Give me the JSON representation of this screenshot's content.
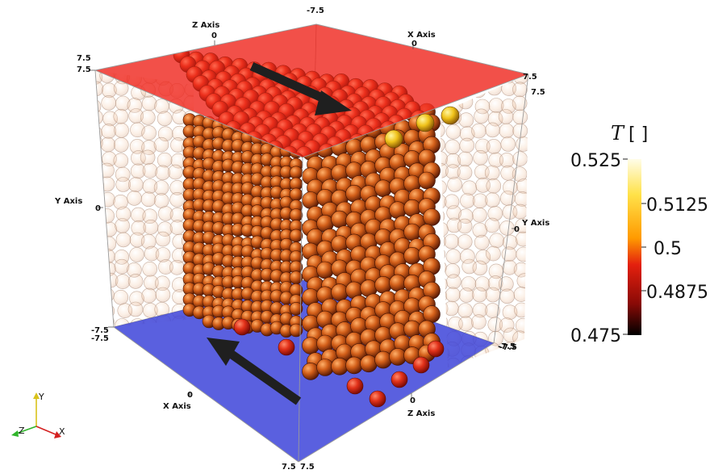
{
  "view": {
    "top_plate_color": "#e42a23",
    "bottom_plate_color": "#3d44d9",
    "particle_color": "#c85a14",
    "arrow_color": "#1f1f1f"
  },
  "axes": {
    "z_top_title": "Z Axis",
    "z_top_zero": "0",
    "top_back_value": "-7.5",
    "x_top_title": "X Axis",
    "x_top_zero": "0",
    "top_left_value_a": "7.5",
    "top_left_value_b": "7.5",
    "top_right_value_a": "7.5",
    "top_right_value_b": "7.5",
    "y_left_title": "Y Axis",
    "y_left_zero": "0",
    "y_right_title": "Y Axis",
    "y_right_zero": "0",
    "bottom_left_value_a": "-7.5",
    "bottom_left_value_b": "-7.5",
    "bottom_right_value_a": "-7.5",
    "bottom_right_value_b": "-7.5",
    "x_bottom_title": "X Axis",
    "x_bottom_zero": "0",
    "z_bottom_title": "Z Axis",
    "z_bottom_zero": "0",
    "bottom_front_value_a": "7.5",
    "bottom_front_value_b": "7.5"
  },
  "colorbar": {
    "title": "T",
    "unit": "[ ]",
    "max": "0.525",
    "t1": "0.5125",
    "t2": "0.5",
    "t3": "0.4875",
    "min": "0.475",
    "colors": [
      "#fffde8",
      "#ffe24a",
      "#ff9a00",
      "#e4200e",
      "#8a0a06",
      "#000000"
    ]
  },
  "triad": {
    "y_label": "Y",
    "z_label": "Z",
    "x_label": "X",
    "y_color": "#d9c21a",
    "z_color": "#2fb52a",
    "x_color": "#d42121"
  }
}
